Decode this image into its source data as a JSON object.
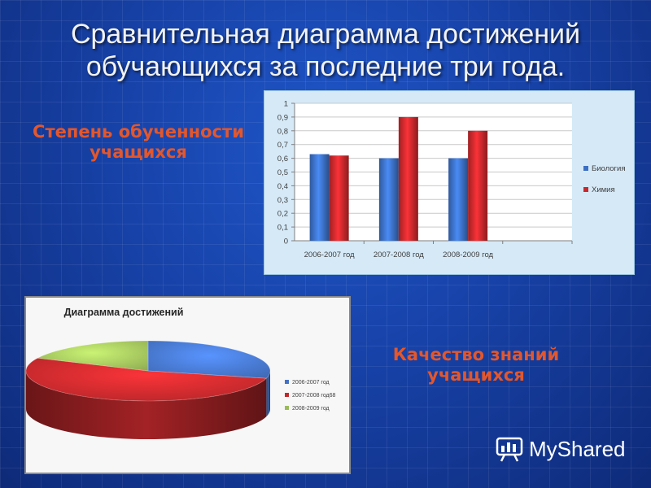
{
  "slide": {
    "title_line1": "Сравнительная диаграмма достижений",
    "title_line2": "обучающихся за последние три года.",
    "caption_top_line1": "Степень обученности",
    "caption_top_line2": "учащихся",
    "caption_bottom_line1": "Качество знаний",
    "caption_bottom_line2": "учащихся",
    "logo_text": "MyShared"
  },
  "colors": {
    "biology": "#3b6fc4",
    "chemistry": "#c8282c",
    "green": "#9bbb59",
    "pie_blue": "#4472c4",
    "pie_red": "#c0282c"
  },
  "chart_data": [
    {
      "type": "bar",
      "title": "",
      "categories": [
        "2006-2007 год",
        "2007-2008 год",
        "2008-2009 год"
      ],
      "series": [
        {
          "name": "Биология",
          "values": [
            0.63,
            0.6,
            0.6
          ]
        },
        {
          "name": "Химия",
          "values": [
            0.62,
            0.9,
            0.8
          ]
        }
      ],
      "y_ticks": [
        "0",
        "0,1",
        "0,2",
        "0,3",
        "0,4",
        "0,5",
        "0,6",
        "0,7",
        "0,8",
        "0,9",
        "1"
      ],
      "ylim": [
        0,
        1
      ],
      "grid": true,
      "legend": "right"
    },
    {
      "type": "pie",
      "title": "Диаграмма достижений",
      "labels": [
        "2006-2007 год",
        "2007-2008 год68",
        "2008-2009 год"
      ],
      "values": [
        29,
        53,
        18
      ],
      "legend": "right"
    }
  ]
}
